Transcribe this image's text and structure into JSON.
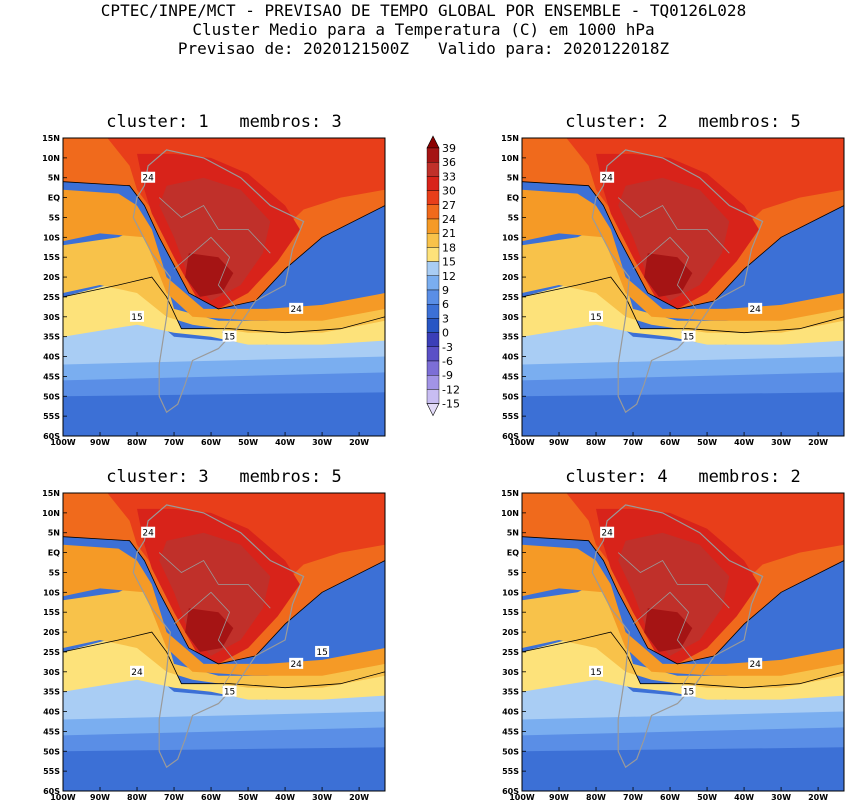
{
  "header": {
    "line1": "CPTEC/INPE/MCT - PREVISAO DE TEMPO GLOBAL POR ENSEMBLE - TQ0126L028",
    "line2": "Cluster Medio para a Temperatura (C) em 1000 hPa",
    "line3": "Previsao de: 2020121500Z   Valido para: 2020122018Z"
  },
  "panels": [
    {
      "title": "cluster: 1   membros: 3"
    },
    {
      "title": "cluster: 2   membros: 5"
    },
    {
      "title": "cluster: 3   membros: 5"
    },
    {
      "title": "cluster: 4   membros: 2"
    }
  ],
  "axes": {
    "lat_labels": [
      "15N",
      "10N",
      "5N",
      "EQ",
      "5S",
      "10S",
      "15S",
      "20S",
      "25S",
      "30S",
      "35S",
      "40S",
      "45S",
      "50S",
      "55S",
      "60S"
    ],
    "lon_labels": [
      "100W",
      "90W",
      "80W",
      "70W",
      "60W",
      "50W",
      "40W",
      "30W",
      "20W"
    ]
  },
  "colorbar": {
    "levels": [
      "39",
      "36",
      "33",
      "30",
      "27",
      "24",
      "21",
      "18",
      "15",
      "12",
      "9",
      "6",
      "3",
      "0",
      "-3",
      "-6",
      "-9",
      "-12",
      "-15"
    ],
    "colors": [
      "#8b0000",
      "#a51414",
      "#c0302a",
      "#d8231a",
      "#e83e1a",
      "#f06a1c",
      "#f59a26",
      "#f8c24a",
      "#fde27a",
      "#a9cdf4",
      "#7aaef0",
      "#5a8ee6",
      "#3c70d6",
      "#2856c4",
      "#3b3fb8",
      "#5a50c6",
      "#7c6ed6",
      "#a294e6",
      "#c8bdf2",
      "#e2dbf8"
    ]
  },
  "contour_labels": {
    "p1": [
      "24",
      "24",
      "15",
      "15"
    ],
    "p2": [
      "24",
      "24",
      "15",
      "15"
    ],
    "p3": [
      "24",
      "24",
      "24",
      "15",
      "15"
    ],
    "p4": [
      "24",
      "24",
      "15",
      "15"
    ]
  },
  "map_colors": {
    "band_30": "#d8231a",
    "band_27": "#e83e1a",
    "band_24": "#f06a1c",
    "band_21": "#f59a26",
    "band_18": "#f8c24a",
    "band_15": "#fde27a",
    "band_12": "#a9cdf4",
    "band_9": "#7aaef0",
    "band_6": "#5a8ee6",
    "band_3": "#3c70d6",
    "hot_33": "#c0302a",
    "hot_36": "#a51414",
    "border": "#9a9a9a"
  }
}
